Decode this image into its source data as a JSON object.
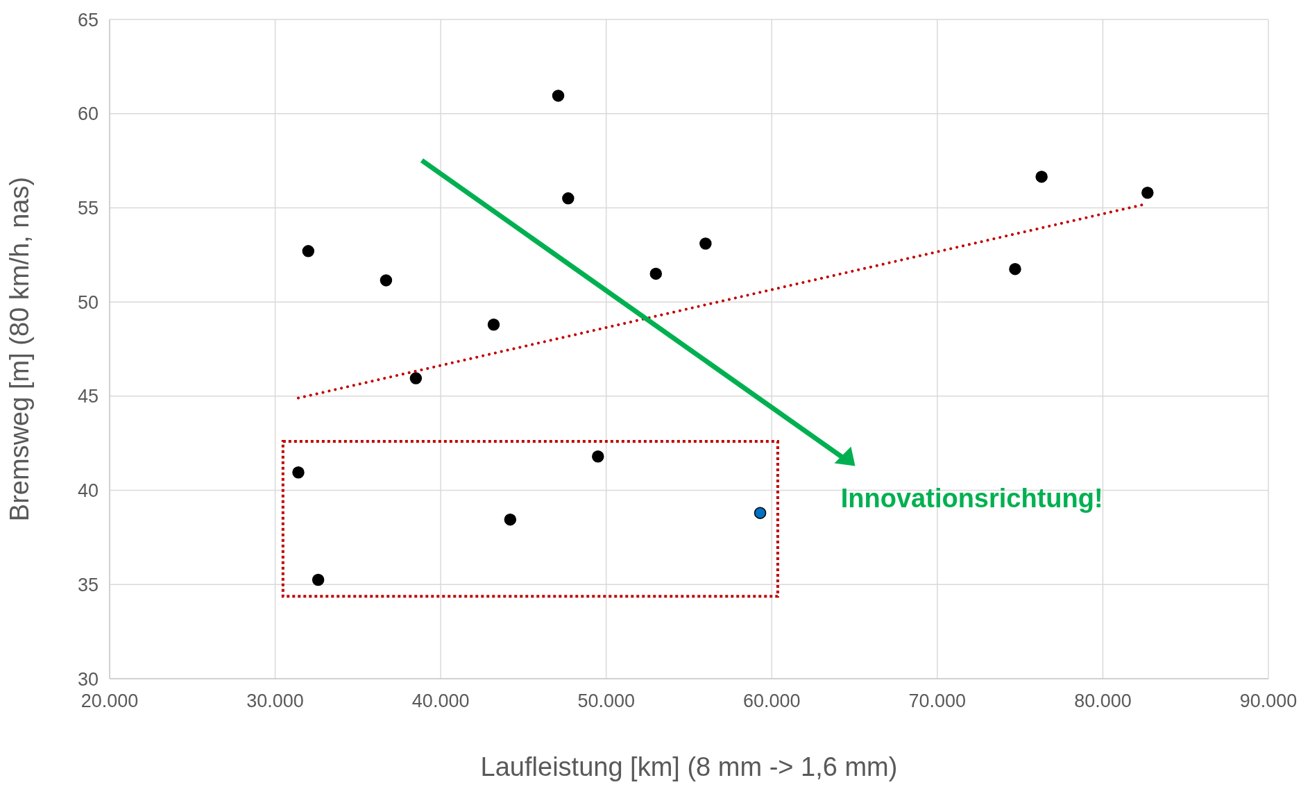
{
  "chart_data": {
    "type": "scatter",
    "xlabel": "Laufleistung [km] (8 mm -> 1,6 mm)",
    "ylabel": "Bremsweg [m] (80 km/h, nas)",
    "xlim": [
      20000,
      90000
    ],
    "xticks": [
      {
        "value": 20000,
        "label": "20.000"
      },
      {
        "value": 30000,
        "label": "30.000"
      },
      {
        "value": 40000,
        "label": "40.000"
      },
      {
        "value": 50000,
        "label": "50.000"
      },
      {
        "value": 60000,
        "label": "60.000"
      },
      {
        "value": 70000,
        "label": "70.000"
      },
      {
        "value": 80000,
        "label": "80.000"
      },
      {
        "value": 90000,
        "label": "90.000"
      }
    ],
    "ylim": [
      30,
      65
    ],
    "yticks": [
      30,
      35,
      40,
      45,
      50,
      55,
      60,
      65
    ],
    "grid": true,
    "marker": "circle",
    "annotations": [
      "Innovationsrichtung!"
    ],
    "series": [
      {
        "color": "#000000",
        "x": [
          32000,
          36700,
          38500,
          43200,
          47100,
          47700,
          53000,
          56000,
          74700,
          76300,
          82700,
          31400,
          32600,
          44200,
          49500
        ],
        "values": [
          52.7,
          51.15,
          45.95,
          48.8,
          60.95,
          55.5,
          51.5,
          53.1,
          51.75,
          56.65,
          55.8,
          40.95,
          35.25,
          38.45,
          41.8
        ]
      },
      {
        "color": "#0070c0",
        "x": [
          59300
        ],
        "values": [
          38.8
        ]
      },
      {
        "type": "line",
        "color": "#c00000",
        "line_style": "dotted",
        "marker": "none",
        "x": [
          31400,
          82600
        ],
        "values": [
          44.9,
          55.2
        ]
      }
    ]
  }
}
